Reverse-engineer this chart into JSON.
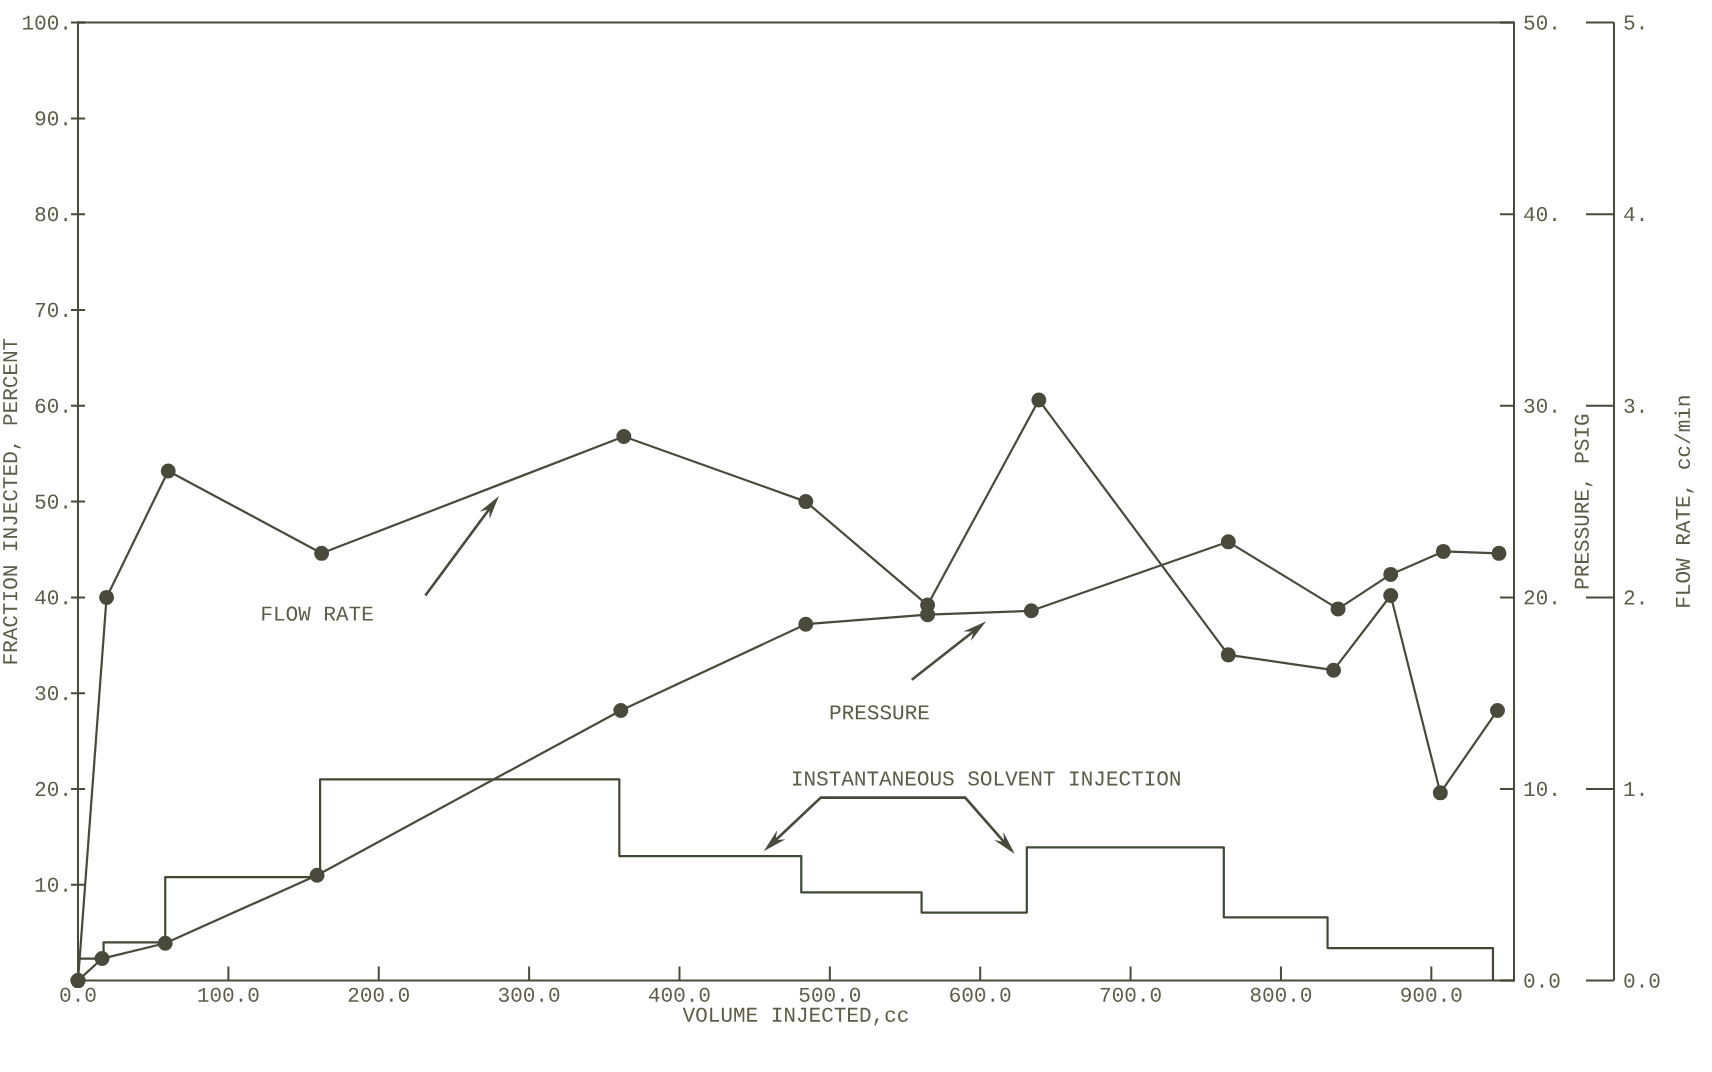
{
  "chart_data": {
    "type": "line",
    "xlabel": "VOLUME INJECTED,cc",
    "ylabel": "FRACTION INJECTED, PERCENT",
    "y2label": "PRESSURE, PSIG",
    "y3label": "FLOW RATE, cc/min",
    "marker": "circle",
    "xlim": [
      0,
      955
    ],
    "xticks": [
      {
        "value": 0,
        "label": "0.0"
      },
      {
        "value": 100,
        "label": "100.0"
      },
      {
        "value": 200,
        "label": "200.0"
      },
      {
        "value": 300,
        "label": "300.0"
      },
      {
        "value": 400,
        "label": "400.0"
      },
      {
        "value": 500,
        "label": "500.0"
      },
      {
        "value": 600,
        "label": "600.0"
      },
      {
        "value": 700,
        "label": "700.0"
      },
      {
        "value": 800,
        "label": "800.0"
      },
      {
        "value": 900,
        "label": "900.0"
      }
    ],
    "ylim": [
      0,
      100
    ],
    "yticks": [
      {
        "value": 10,
        "label": "10."
      },
      {
        "value": 20,
        "label": "20."
      },
      {
        "value": 30,
        "label": "30."
      },
      {
        "value": 40,
        "label": "40."
      },
      {
        "value": 50,
        "label": "50."
      },
      {
        "value": 60,
        "label": "60."
      },
      {
        "value": 70,
        "label": "70."
      },
      {
        "value": 80,
        "label": "80."
      },
      {
        "value": 90,
        "label": "90."
      },
      {
        "value": 100,
        "label": "100."
      }
    ],
    "y2lim": [
      0,
      50
    ],
    "y2ticks": [
      {
        "value": 0,
        "label": "0.0"
      },
      {
        "value": 10,
        "label": "10."
      },
      {
        "value": 20,
        "label": "20."
      },
      {
        "value": 30,
        "label": "30."
      },
      {
        "value": 40,
        "label": "40."
      },
      {
        "value": 50,
        "label": "50."
      }
    ],
    "y3lim": [
      0,
      5
    ],
    "y3ticks": [
      {
        "value": 0,
        "label": "0.0"
      },
      {
        "value": 1,
        "label": "1."
      },
      {
        "value": 2,
        "label": "2."
      },
      {
        "value": 3,
        "label": "3."
      },
      {
        "value": 4,
        "label": "4."
      },
      {
        "value": 5,
        "label": "5."
      }
    ],
    "series": [
      {
        "axis": "y3",
        "color": "#4a4a3c",
        "x": [
          0,
          19,
          60,
          162,
          363,
          484,
          565,
          639,
          765,
          835,
          873,
          906,
          944
        ],
        "values": [
          0,
          2.0,
          2.66,
          2.23,
          2.84,
          2.5,
          1.96,
          3.03,
          1.7,
          1.62,
          2.01,
          0.98,
          1.41
        ]
      },
      {
        "axis": "y2",
        "color": "#4a4a3c",
        "x": [
          0,
          16,
          58,
          159,
          361,
          484,
          565,
          634,
          765,
          838,
          873,
          908,
          945
        ],
        "values": [
          0,
          1.15,
          1.95,
          5.5,
          14.1,
          18.6,
          19.1,
          19.3,
          22.9,
          19.4,
          21.2,
          22.4,
          22.3
        ]
      },
      {
        "type": "step",
        "marker": "none",
        "color": "#3f4a34",
        "x": [
          0,
          17,
          58,
          161,
          360,
          481,
          561,
          631,
          762,
          831,
          941
        ],
        "values": [
          2.3,
          4.0,
          10.8,
          21.0,
          13.0,
          9.2,
          7.1,
          13.9,
          6.6,
          3.4,
          0
        ]
      }
    ],
    "annotations": [
      "FLOW RATE",
      "PRESSURE",
      "INSTANTANEOUS SOLVENT INJECTION"
    ]
  }
}
